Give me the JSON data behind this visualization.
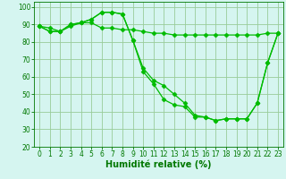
{
  "line1_x": [
    0,
    1,
    2,
    3,
    4,
    5,
    6,
    7,
    8,
    9,
    10,
    11,
    12,
    13,
    14,
    15,
    16,
    17,
    18,
    19,
    20,
    21,
    22,
    23
  ],
  "line1_y": [
    89,
    88,
    86,
    89,
    91,
    91,
    88,
    88,
    87,
    87,
    86,
    85,
    85,
    84,
    84,
    84,
    84,
    84,
    84,
    84,
    84,
    84,
    85,
    85
  ],
  "line2_x": [
    0,
    1,
    2,
    3,
    4,
    5,
    6,
    7,
    8,
    9,
    10,
    11,
    12,
    13,
    14,
    15,
    16,
    17,
    18,
    19,
    20,
    21,
    22,
    23
  ],
  "line2_y": [
    89,
    86,
    86,
    90,
    91,
    93,
    97,
    97,
    96,
    81,
    65,
    58,
    55,
    50,
    45,
    38,
    37,
    35,
    36,
    36,
    36,
    45,
    68,
    85
  ],
  "line3_x": [
    0,
    1,
    2,
    3,
    4,
    5,
    6,
    7,
    8,
    9,
    10,
    11,
    12,
    13,
    14,
    15,
    16,
    17,
    18,
    19,
    20,
    21,
    22,
    23
  ],
  "line3_y": [
    89,
    86,
    86,
    90,
    91,
    93,
    97,
    97,
    96,
    81,
    63,
    56,
    47,
    44,
    43,
    37,
    37,
    35,
    36,
    36,
    36,
    45,
    68,
    85
  ],
  "line_color": "#00bb00",
  "marker": "D",
  "marker_size": 2.5,
  "bg_color": "#d5f5f0",
  "grid_color": "#99cc99",
  "xlabel": "Humidité relative (%)",
  "xlabel_color": "#007700",
  "xlabel_fontsize": 7,
  "tick_color": "#007700",
  "tick_fontsize": 5.5,
  "ylim": [
    20,
    103
  ],
  "xlim": [
    -0.5,
    23.5
  ],
  "yticks": [
    20,
    30,
    40,
    50,
    60,
    70,
    80,
    90,
    100
  ],
  "xticks": [
    0,
    1,
    2,
    3,
    4,
    5,
    6,
    7,
    8,
    9,
    10,
    11,
    12,
    13,
    14,
    15,
    16,
    17,
    18,
    19,
    20,
    21,
    22,
    23
  ]
}
